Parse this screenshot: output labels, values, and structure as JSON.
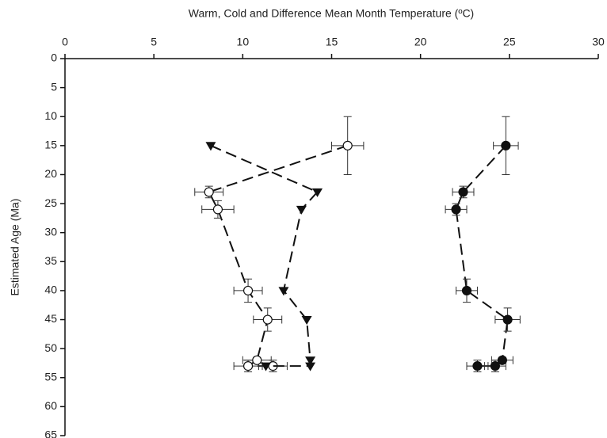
{
  "chart_data": {
    "type": "scatter",
    "x_label": "Warm, Cold and Difference Mean Month Temperature (ºC)",
    "y_label": "Estimated Age (Ma)",
    "x_axis_position": "top",
    "y_inverted": true,
    "xlim": [
      0,
      30
    ],
    "xticks": [
      0,
      5,
      10,
      15,
      20,
      25,
      30
    ],
    "ylim": [
      0,
      65
    ],
    "yticks": [
      0,
      5,
      10,
      15,
      20,
      25,
      30,
      35,
      40,
      45,
      50,
      55,
      60,
      65
    ],
    "series": [
      {
        "marker": "filled-circle",
        "color": "#111111",
        "x": [
          24.8,
          22.4,
          22.0,
          22.6,
          24.9,
          24.6,
          24.2,
          23.2
        ],
        "y": [
          15,
          23,
          26,
          40,
          45,
          52,
          53,
          53
        ],
        "xerr": [
          0.7,
          0.6,
          0.6,
          0.6,
          0.7,
          0.6,
          0.6,
          0.6
        ],
        "yerr": [
          5,
          1,
          1,
          2,
          2,
          0.5,
          1,
          1
        ]
      },
      {
        "marker": "open-circle",
        "color": "#111111",
        "x": [
          15.9,
          8.1,
          8.6,
          10.3,
          11.4,
          10.8,
          10.3,
          11.7
        ],
        "y": [
          15,
          23,
          26,
          40,
          45,
          52,
          53,
          53
        ],
        "xerr": [
          0.9,
          0.8,
          0.9,
          0.8,
          0.8,
          0.8,
          0.8,
          0.8
        ],
        "yerr": [
          5,
          1,
          1.5,
          2,
          2,
          0.5,
          1,
          1
        ]
      },
      {
        "marker": "triangle-down",
        "color": "#111111",
        "x": [
          8.2,
          14.2,
          13.3,
          12.3,
          13.6,
          13.8,
          13.8,
          11.3
        ],
        "y": [
          15,
          23,
          26,
          40,
          45,
          52,
          53,
          53
        ]
      }
    ]
  }
}
